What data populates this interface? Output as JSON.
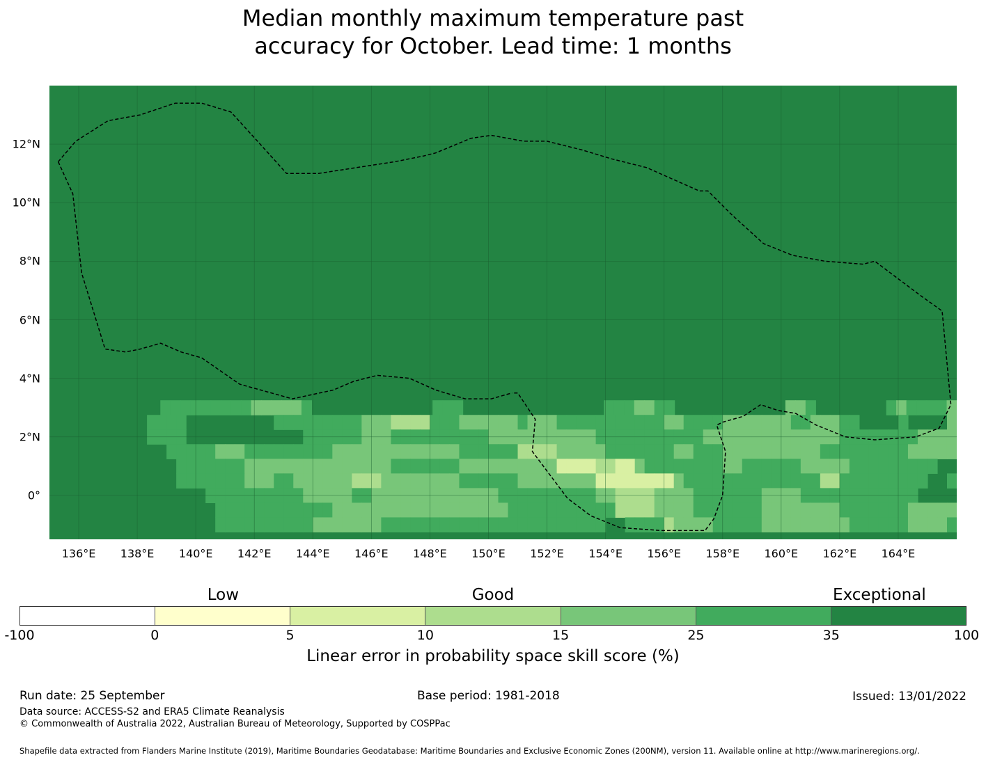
{
  "title_line1": "Median monthly maximum temperature past",
  "title_line2": "accuracy for October. Lead time: 1 months",
  "map": {
    "lon_ticks": [
      "136°E",
      "138°E",
      "140°E",
      "142°E",
      "144°E",
      "146°E",
      "148°E",
      "150°E",
      "152°E",
      "154°E",
      "156°E",
      "158°E",
      "160°E",
      "162°E",
      "164°E"
    ],
    "lon_values": [
      136,
      138,
      140,
      142,
      144,
      146,
      148,
      150,
      152,
      154,
      156,
      158,
      160,
      162,
      164
    ],
    "lat_ticks": [
      "12°N",
      "10°N",
      "8°N",
      "6°N",
      "4°N",
      "2°N",
      "0°"
    ],
    "lat_values": [
      12,
      10,
      8,
      6,
      4,
      2,
      0
    ],
    "lon_range": [
      135,
      166
    ],
    "lat_range": [
      -1.5,
      14
    ],
    "background_class": 6,
    "class_colors": [
      "#ffffff",
      "#ffffcc",
      "#d9f0a3",
      "#addd8e",
      "#78c679",
      "#41ab5d",
      "#238443"
    ],
    "cell_rows": [
      {
        "lat": 3.0,
        "codes": "666666666665555555554444456666666666665556666666666666655544556666666666644566666665455554"
      },
      {
        "lat": 2.5,
        "codes": "666666666655556666666665555555554443333555444444544455555555555445555444444455444556666566664"
      },
      {
        "lat": 2.0,
        "codes": "666666666655556666666666665555554445555555555444444444445555555555544444444444444555555554444"
      },
      {
        "lat": 1.5,
        "codes": "666666666666555554445555555554444444444444555555333344444555555544555444444444455555555544444"
      },
      {
        "lat": 1.0,
        "codes": "666666666666655555554444444444444445555555444444444422223322455555555445555554444455555555566"
      },
      {
        "lat": 0.5,
        "codes": "666666666666655555554445544444433344444444555555444444442222222245555555555555533555555555665"
      },
      {
        "lat": 0.0,
        "codes": "666666666666666655555555554444455444444444444455555555554433334444555555544445555555555556666"
      },
      {
        "lat": -0.5,
        "codes": "666666666666666665555555555554444444444444444445555555555533334444555555544444444555555544444"
      },
      {
        "lat": -1.0,
        "codes": "666666666666666665555555555444444455555555555555555555555665555344445555544444444455555544445"
      }
    ],
    "eez_lines": [
      [
        [
          135.3,
          11.4
        ],
        [
          135.8,
          10.3
        ],
        [
          136.1,
          7.6
        ],
        [
          136.9,
          5.0
        ],
        [
          137.6,
          4.9
        ],
        [
          138.1,
          5.0
        ],
        [
          138.8,
          5.2
        ],
        [
          139.5,
          4.9
        ],
        [
          140.2,
          4.7
        ],
        [
          141.5,
          3.8
        ],
        [
          143.3,
          3.3
        ],
        [
          144.7,
          3.6
        ],
        [
          145.4,
          3.9
        ],
        [
          146.2,
          4.1
        ],
        [
          147.3,
          4.0
        ],
        [
          148.2,
          3.6
        ],
        [
          149.2,
          3.3
        ],
        [
          150.1,
          3.3
        ],
        [
          150.8,
          3.5
        ]
      ],
      [
        [
          135.3,
          11.4
        ],
        [
          135.9,
          12.1
        ],
        [
          137.0,
          12.8
        ],
        [
          138.1,
          13.0
        ],
        [
          139.3,
          13.4
        ],
        [
          140.2,
          13.4
        ],
        [
          141.2,
          13.1
        ],
        [
          142.2,
          12.0
        ],
        [
          143.1,
          11.0
        ],
        [
          144.2,
          11.0
        ],
        [
          145.5,
          11.2
        ],
        [
          146.8,
          11.4
        ],
        [
          147.8,
          11.6
        ],
        [
          148.2,
          11.7
        ],
        [
          149.4,
          12.2
        ],
        [
          150.1,
          12.3
        ],
        [
          151.2,
          12.1
        ],
        [
          152.0,
          12.1
        ],
        [
          153.2,
          11.8
        ],
        [
          154.2,
          11.5
        ],
        [
          155.4,
          11.2
        ],
        [
          156.3,
          10.8
        ],
        [
          157.2,
          10.4
        ],
        [
          157.5,
          10.4
        ],
        [
          158.3,
          9.6
        ],
        [
          159.4,
          8.6
        ],
        [
          160.4,
          8.2
        ],
        [
          161.5,
          8.0
        ],
        [
          162.8,
          7.9
        ],
        [
          163.2,
          8.0
        ],
        [
          164.0,
          7.4
        ],
        [
          164.8,
          6.8
        ],
        [
          165.5,
          6.3
        ],
        [
          165.8,
          3.1
        ],
        [
          165.4,
          2.3
        ],
        [
          164.6,
          2.0
        ],
        [
          163.2,
          1.9
        ],
        [
          162.2,
          2.0
        ],
        [
          161.2,
          2.4
        ],
        [
          160.5,
          2.8
        ],
        [
          159.9,
          2.9
        ],
        [
          159.3,
          3.1
        ],
        [
          158.7,
          2.7
        ],
        [
          158.0,
          2.5
        ],
        [
          157.8,
          2.4
        ],
        [
          158.1,
          1.5
        ],
        [
          158.0,
          0.0
        ],
        [
          157.7,
          -0.8
        ],
        [
          157.4,
          -1.2
        ],
        [
          155.9,
          -1.2
        ],
        [
          154.5,
          -1.1
        ],
        [
          153.5,
          -0.7
        ],
        [
          152.7,
          -0.1
        ],
        [
          151.5,
          1.5
        ],
        [
          151.6,
          2.6
        ],
        [
          151.0,
          3.5
        ],
        [
          150.8,
          3.5
        ]
      ]
    ]
  },
  "colorbar": {
    "categories": [
      "Low",
      "Good",
      "Exceptional"
    ],
    "category_positions": [
      0.215,
      0.5,
      0.908
    ],
    "colors": [
      "#ffffff",
      "#ffffcc",
      "#d9f0a3",
      "#addd8e",
      "#78c679",
      "#41ab5d",
      "#238443"
    ],
    "ticks": [
      "-100",
      "0",
      "5",
      "10",
      "15",
      "25",
      "35",
      "100"
    ],
    "label": "Linear error in probability space skill score (%)"
  },
  "footer": {
    "run_date": "Run date: 25 September",
    "base_period": "Base period: 1981-2018",
    "issued": "Issued: 13/01/2022",
    "data_source": "Data source: ACCESS-S2 and ERA5 Climate Reanalysis",
    "copyright": "© Commonwealth of Australia 2022, Australian Bureau of Meteorology, Supported by COSPPac",
    "shapefile": "Shapefile data extracted from Flanders Marine Institute (2019), Maritime Boundaries Geodatabase: Maritime Boundaries and Exclusive Economic Zones (200NM), version 11. Available online at http://www.marineregions.org/."
  }
}
